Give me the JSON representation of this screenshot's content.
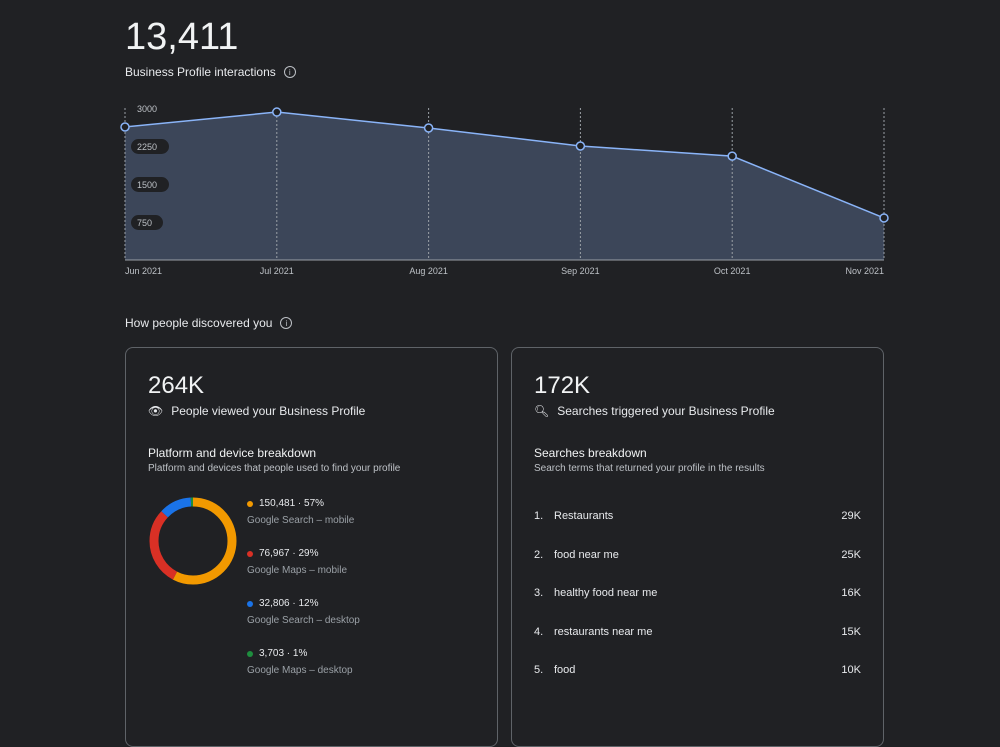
{
  "header": {
    "total": "13,411",
    "subtitle": "Business Profile interactions"
  },
  "chart_data": {
    "type": "area",
    "title": "Business Profile interactions",
    "categories": [
      "Jun 2021",
      "Jul 2021",
      "Aug 2021",
      "Sep 2021",
      "Oct 2021",
      "Nov 2021"
    ],
    "values": [
      2625,
      2920,
      2605,
      2250,
      2050,
      830
    ],
    "y_ticks": [
      "3000",
      "2250",
      "1500",
      "750"
    ],
    "ylim": [
      0,
      3000
    ],
    "colors": {
      "line": "#8ab4f8",
      "fill": "#3c4659"
    }
  },
  "section": {
    "title": "How people discovered you"
  },
  "views": {
    "value": "264K",
    "label": "People viewed your Business Profile",
    "heading": "Platform and device breakdown",
    "sub": "Platform and devices that people used to find your profile",
    "items": [
      {
        "value": "150,481 · 57%",
        "label": "Google Search – mobile",
        "pct": 57,
        "color": "#f29900"
      },
      {
        "value": "76,967 · 29%",
        "label": "Google Maps – mobile",
        "pct": 29,
        "color": "#d93025"
      },
      {
        "value": "32,806 · 12%",
        "label": "Google Search – desktop",
        "pct": 12,
        "color": "#1a73e8"
      },
      {
        "value": "3,703 · 1%",
        "label": "Google Maps – desktop",
        "pct": 1,
        "color": "#1e8e3e"
      }
    ]
  },
  "searches": {
    "value": "172K",
    "label": "Searches triggered your Business Profile",
    "heading": "Searches breakdown",
    "sub": "Search terms that returned your profile in the results",
    "items": [
      {
        "rank": "1.",
        "term": "Restaurants",
        "count": "29K"
      },
      {
        "rank": "2.",
        "term": "food near me",
        "count": "25K"
      },
      {
        "rank": "3.",
        "term": "healthy food near me",
        "count": "16K"
      },
      {
        "rank": "4.",
        "term": "restaurants near me",
        "count": "15K"
      },
      {
        "rank": "5.",
        "term": "food",
        "count": "10K"
      }
    ]
  }
}
